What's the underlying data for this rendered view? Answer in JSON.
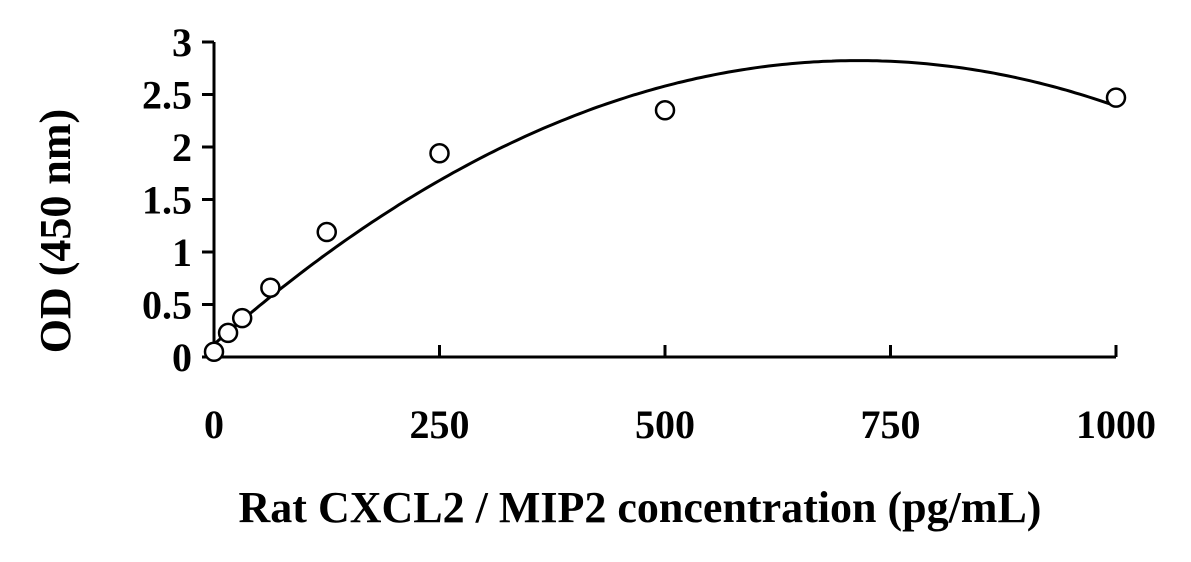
{
  "chart_data": {
    "type": "scatter",
    "xlabel": "Rat CXCL2 / MIP2 concentration (pg/mL)",
    "ylabel": "OD (450 nm)",
    "xlim": [
      0,
      1000
    ],
    "ylim": [
      0,
      3
    ],
    "xticks": [
      0,
      250,
      500,
      750,
      1000
    ],
    "xtick_labels": [
      "0",
      "250",
      "500",
      "750",
      "1000"
    ],
    "yticks": [
      0,
      0.5,
      1,
      1.5,
      2,
      2.5,
      3
    ],
    "ytick_labels": [
      "0",
      "0.5",
      "1",
      "1.5",
      "2",
      "2.5",
      "3"
    ],
    "grid": false,
    "legend": false,
    "series": [
      {
        "points": [
          {
            "x": 0,
            "y": 0.05
          },
          {
            "x": 15.6,
            "y": 0.23
          },
          {
            "x": 31.25,
            "y": 0.37
          },
          {
            "x": 62.5,
            "y": 0.66
          },
          {
            "x": 125,
            "y": 1.19
          },
          {
            "x": 250,
            "y": 1.94
          },
          {
            "x": 500,
            "y": 2.35
          },
          {
            "x": 1000,
            "y": 2.47
          }
        ],
        "marker": "open-circle",
        "color": "#000000"
      }
    ],
    "trendline": {
      "type": "polynomial-2",
      "coefficients": {
        "a": -5.3e-06,
        "b": 0.00757,
        "c": 0.12
      }
    }
  }
}
